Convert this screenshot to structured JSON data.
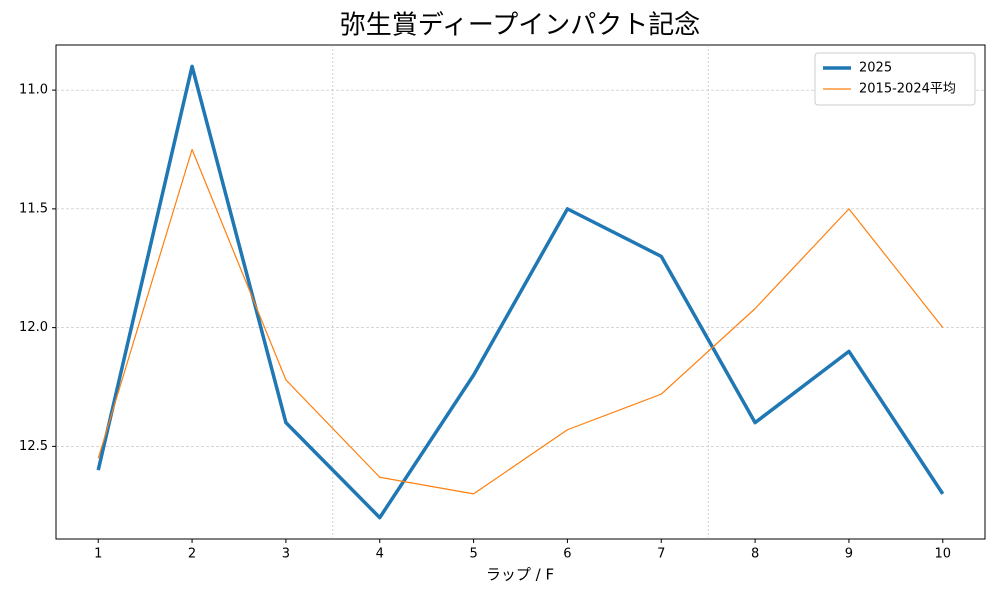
{
  "chart_data": {
    "type": "line",
    "title": "弥生賞ディープインパクト記念",
    "x_label": "ラップ / F",
    "x": [
      1,
      2,
      3,
      4,
      5,
      6,
      7,
      8,
      9,
      10
    ],
    "series": [
      {
        "name": "2025",
        "color": "#1f77b4",
        "linewidth": 3.5,
        "values": [
          12.6,
          10.9,
          12.4,
          12.8,
          12.2,
          11.5,
          11.7,
          12.4,
          12.1,
          12.7
        ]
      },
      {
        "name": "2015-2024平均",
        "color": "#ff7f0e",
        "linewidth": 1.2,
        "values": [
          12.55,
          11.25,
          12.22,
          12.63,
          12.7,
          12.43,
          12.28,
          11.92,
          11.5,
          12.0
        ]
      }
    ],
    "xlim": [
      0.55,
      10.45
    ],
    "xticks": [
      1,
      2,
      3,
      4,
      5,
      6,
      7,
      8,
      9,
      10
    ],
    "ylim": [
      10.81,
      12.89
    ],
    "y_inverted": true,
    "yticks": [
      {
        "value": 11,
        "label": "11.0"
      },
      11.5,
      {
        "value": 12,
        "label": "12.0"
      },
      12.5
    ],
    "vlines": [
      3.5,
      7.5
    ],
    "grid": true,
    "legend": "upper right"
  }
}
